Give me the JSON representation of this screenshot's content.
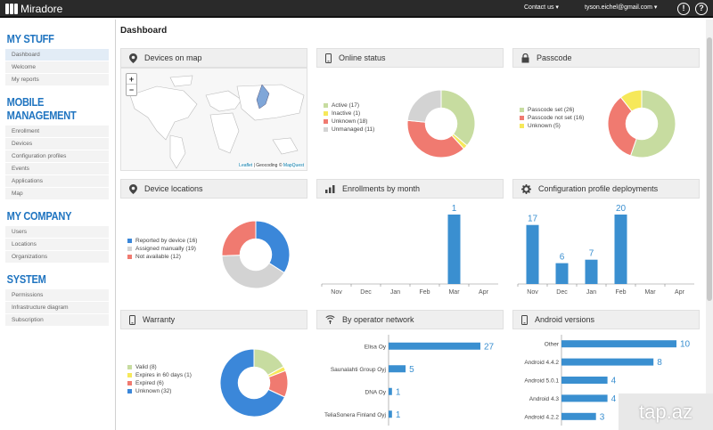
{
  "app": {
    "title": "Miradore",
    "contact": "Contact us",
    "user": "tyson.eichel@gmail.com",
    "info_icon": "!",
    "help_icon": "?"
  },
  "sidebar": {
    "sections": [
      {
        "title": "MY STUFF",
        "items": [
          "Dashboard",
          "Welcome",
          "My reports"
        ]
      },
      {
        "title": "MOBILE MANAGEMENT",
        "items": [
          "Enrollment",
          "Devices",
          "Configuration profiles",
          "Events",
          "Applications",
          "Map"
        ]
      },
      {
        "title": "MY COMPANY",
        "items": [
          "Users",
          "Locations",
          "Organizations"
        ]
      },
      {
        "title": "SYSTEM",
        "items": [
          "Permissions",
          "Infrastructure diagram",
          "Subscription"
        ]
      }
    ]
  },
  "page": {
    "title": "Dashboard"
  },
  "colors": {
    "green": "#c7dca0",
    "red": "#f07a70",
    "yellow": "#f6e85a",
    "gray": "#d3d3d3",
    "blue": "#3b87d9",
    "bar": "#3a8fd0"
  },
  "panels": {
    "map": {
      "title": "Devices on map",
      "zoom_in": "+",
      "zoom_out": "−",
      "attr_leaflet": "Leaflet",
      "attr_sep": " | Geocoding © ",
      "attr_mq": "MapQuest"
    },
    "online": {
      "title": "Online status",
      "legend": [
        "Active (17)",
        "Inactive (1)",
        "Unknown (18)",
        "Unmanaged (11)"
      ]
    },
    "passcode": {
      "title": "Passcode",
      "legend": [
        "Passcode set (26)",
        "Passcode not set (16)",
        "Unknown (5)"
      ]
    },
    "locations": {
      "title": "Device locations",
      "legend": [
        "Reported by device (16)",
        "Assigned manually (19)",
        "Not available (12)"
      ]
    },
    "enrollments": {
      "title": "Enrollments by month"
    },
    "config": {
      "title": "Configuration profile deployments"
    },
    "warranty": {
      "title": "Warranty",
      "legend": [
        "Valid (8)",
        "Expires in 60 days (1)",
        "Expired (6)",
        "Unknown (32)"
      ]
    },
    "operator": {
      "title": "By operator network"
    },
    "android": {
      "title": "Android versions"
    }
  },
  "chart_data": [
    {
      "type": "pie",
      "title": "Online status",
      "categories": [
        "Active",
        "Inactive",
        "Unknown",
        "Unmanaged"
      ],
      "values": [
        17,
        1,
        18,
        11
      ],
      "colors": [
        "#c7dca0",
        "#f6e85a",
        "#f07a70",
        "#d3d3d3"
      ]
    },
    {
      "type": "pie",
      "title": "Passcode",
      "categories": [
        "Passcode set",
        "Passcode not set",
        "Unknown"
      ],
      "values": [
        26,
        16,
        5
      ],
      "colors": [
        "#c7dca0",
        "#f07a70",
        "#f6e85a"
      ]
    },
    {
      "type": "pie",
      "title": "Device locations",
      "categories": [
        "Reported by device",
        "Assigned manually",
        "Not available"
      ],
      "values": [
        16,
        19,
        12
      ],
      "colors": [
        "#3b87d9",
        "#d3d3d3",
        "#f07a70"
      ]
    },
    {
      "type": "bar",
      "title": "Enrollments by month",
      "categories": [
        "Nov",
        "Dec",
        "Jan",
        "Feb",
        "Mar",
        "Apr"
      ],
      "values": [
        0,
        0,
        0,
        0,
        1,
        0
      ],
      "labels": [
        "",
        "",
        "",
        "",
        "1",
        ""
      ]
    },
    {
      "type": "bar",
      "title": "Configuration profile deployments",
      "categories": [
        "Nov",
        "Dec",
        "Jan",
        "Feb",
        "Mar",
        "Apr"
      ],
      "values": [
        17,
        6,
        7,
        20,
        0,
        0
      ],
      "labels": [
        "17",
        "6",
        "7",
        "20",
        "",
        ""
      ]
    },
    {
      "type": "pie",
      "title": "Warranty",
      "categories": [
        "Valid",
        "Expires in 60 days",
        "Expired",
        "Unknown"
      ],
      "values": [
        8,
        1,
        6,
        32
      ],
      "colors": [
        "#c7dca0",
        "#f6e85a",
        "#f07a70",
        "#3b87d9"
      ]
    },
    {
      "type": "bar",
      "orientation": "horizontal",
      "title": "By operator network",
      "categories": [
        "Elisa Oy",
        "Saunalahti Group Oyj",
        "DNA Oy",
        "TeliaSonera Finland Oyj"
      ],
      "values": [
        27,
        5,
        1,
        1
      ],
      "labels": [
        "27",
        "5",
        "1",
        "1"
      ]
    },
    {
      "type": "bar",
      "orientation": "horizontal",
      "title": "Android versions",
      "categories": [
        "Other",
        "Android 4.4.2",
        "Android 5.0.1",
        "Android 4.3",
        "Android 4.2.2"
      ],
      "values": [
        10,
        8,
        4,
        4,
        3
      ],
      "labels": [
        "10",
        "8",
        "4",
        "4",
        "3"
      ]
    }
  ],
  "watermark": "tap.az"
}
